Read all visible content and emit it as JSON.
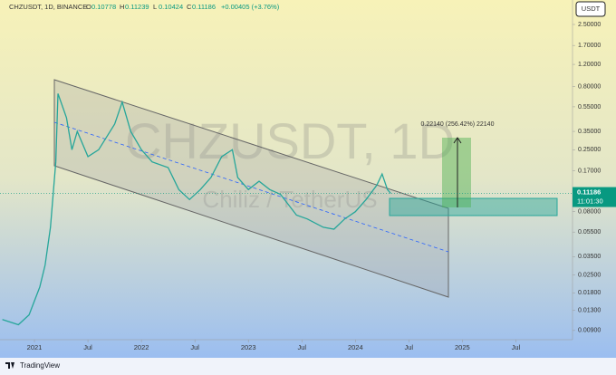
{
  "chart_data": {
    "type": "line",
    "title": "CHZUSDT, 1D, BINANCE",
    "ohlc": [
      {
        "label": "O",
        "value": 0.10778
      },
      {
        "label": "H",
        "value": 0.11239
      },
      {
        "label": "L",
        "value": 0.10424
      },
      {
        "label": "C",
        "value": 0.11186
      }
    ],
    "change": "+0.00405 (+3.76%)",
    "watermark": "CHZUSDT, 1D",
    "watermark_subtitle": "Chiliz / TetherUS",
    "annotations": [
      "0.22140 (256.42%) 22140"
    ],
    "currency": "USDT",
    "last_price": 0.11186,
    "countdown": "11:01:30",
    "brand": "TradingView",
    "log_scale": true,
    "series": [
      {
        "color": "#26a69a",
        "x": [
          2020.7,
          2020.85,
          2020.95,
          2021.05,
          2021.1,
          2021.15,
          2021.2,
          2021.22,
          2021.3,
          2021.35,
          2021.4,
          2021.5,
          2021.6,
          2021.75,
          2021.82,
          2021.9,
          2022.0,
          2022.1,
          2022.25,
          2022.35,
          2022.45,
          2022.55,
          2022.65,
          2022.75,
          2022.85,
          2022.9,
          2023.0,
          2023.1,
          2023.2,
          2023.3,
          2023.45,
          2023.55,
          2023.7,
          2023.8,
          2023.9,
          2024.0,
          2024.1,
          2024.2,
          2024.25,
          2024.3,
          2024.33
        ],
        "values": [
          0.011,
          0.01,
          0.012,
          0.02,
          0.03,
          0.06,
          0.2,
          0.7,
          0.45,
          0.25,
          0.35,
          0.22,
          0.25,
          0.4,
          0.6,
          0.35,
          0.25,
          0.2,
          0.18,
          0.12,
          0.1,
          0.12,
          0.15,
          0.22,
          0.25,
          0.15,
          0.12,
          0.14,
          0.12,
          0.11,
          0.075,
          0.07,
          0.06,
          0.058,
          0.07,
          0.08,
          0.1,
          0.13,
          0.16,
          0.12,
          0.11186
        ]
      }
    ],
    "xlim": [
      2020.678,
      2026.03
    ],
    "xticks": [
      {
        "value": 2021,
        "label": "2021"
      },
      {
        "value": 2021.5,
        "label": "Jul"
      },
      {
        "value": 2022,
        "label": "2022"
      },
      {
        "value": 2022.5,
        "label": "Jul"
      },
      {
        "value": 2023,
        "label": "2023"
      },
      {
        "value": 2023.5,
        "label": "Jul"
      },
      {
        "value": 2024,
        "label": "2024"
      },
      {
        "value": 2024.5,
        "label": "Jul"
      },
      {
        "value": 2025,
        "label": "2025"
      },
      {
        "value": 2025.5,
        "label": "Jul"
      }
    ],
    "ylim": [
      0.0076,
      3.92
    ],
    "yticks": [
      {
        "value": 2.5,
        "label": "2.50000"
      },
      {
        "value": 1.7,
        "label": "1.70000"
      },
      {
        "value": 1.2,
        "label": "1.20000"
      },
      {
        "value": 0.8,
        "label": "0.80000"
      },
      {
        "value": 0.55,
        "label": "0.55000"
      },
      {
        "value": 0.35,
        "label": "0.35000"
      },
      {
        "value": 0.25,
        "label": "0.25000"
      },
      {
        "value": 0.17,
        "label": "0.17000"
      },
      {
        "value": 0.08,
        "label": "0.08000"
      },
      {
        "value": 0.055,
        "label": "0.05500"
      },
      {
        "value": 0.035,
        "label": "0.03500"
      },
      {
        "value": 0.025,
        "label": "0.02500"
      },
      {
        "value": 0.018,
        "label": "0.01800"
      },
      {
        "value": 0.013,
        "label": "0.01300"
      },
      {
        "value": 0.009,
        "label": "0.00900"
      }
    ]
  }
}
